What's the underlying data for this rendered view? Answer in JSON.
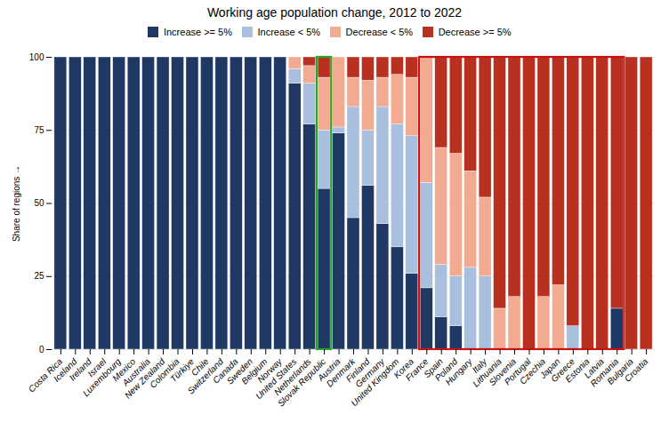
{
  "chart_data": {
    "type": "bar",
    "title": "Working age population change, 2012 to 2022",
    "ylabel": "Share of regions",
    "stacked": true,
    "grid": true,
    "legend": "top",
    "categories": [
      "Costa Rica",
      "Iceland",
      "Ireland",
      "Israel",
      "Luxembourg",
      "Mexico",
      "Australia",
      "New Zealand",
      "Colombia",
      "Türkiye",
      "Chile",
      "Switzerland",
      "Canada",
      "Sweden",
      "Belgium",
      "Norway",
      "United States",
      "Netherlands",
      "Slovak Republic",
      "Austria",
      "Denmark",
      "Finland",
      "Germany",
      "United Kingdom",
      "Korea",
      "France",
      "Spain",
      "Poland",
      "Hungary",
      "Italy",
      "Lithuania",
      "Slovenia",
      "Portugal",
      "Czechia",
      "Japan",
      "Greece",
      "Estonia",
      "Latvia",
      "Romania",
      "Bulgaria",
      "Croatia"
    ],
    "series": [
      {
        "name": "Increase >= 5%",
        "color": "#1f3864",
        "values": [
          100,
          100,
          100,
          100,
          100,
          100,
          100,
          100,
          100,
          100,
          100,
          100,
          100,
          100,
          100,
          100,
          91,
          77,
          55,
          74,
          45,
          56,
          43,
          35,
          26,
          21,
          11,
          8,
          0,
          0,
          0,
          0,
          0,
          0,
          0,
          0,
          0,
          0,
          14,
          0,
          0
        ]
      },
      {
        "name": "Increase < 5%",
        "color": "#a8bfdd",
        "values": [
          0,
          0,
          0,
          0,
          0,
          0,
          0,
          0,
          0,
          0,
          0,
          0,
          0,
          0,
          0,
          0,
          5,
          14,
          20,
          2,
          38,
          19,
          40,
          42,
          47,
          36,
          18,
          17,
          28,
          25,
          0,
          0,
          0,
          0,
          0,
          8,
          0,
          0,
          0,
          0,
          0
        ]
      },
      {
        "name": "Decrease < 5%",
        "color": "#f2aa91",
        "values": [
          0,
          0,
          0,
          0,
          0,
          0,
          0,
          0,
          0,
          0,
          0,
          0,
          0,
          0,
          0,
          0,
          4,
          6,
          18,
          24,
          10,
          17,
          10,
          17,
          20,
          43,
          40,
          42,
          33,
          27,
          14,
          18,
          0,
          18,
          22,
          0,
          0,
          0,
          0,
          0,
          0
        ]
      },
      {
        "name": "Decrease >= 5%",
        "color": "#b83020",
        "values": [
          0,
          0,
          0,
          0,
          0,
          0,
          0,
          0,
          0,
          0,
          0,
          0,
          0,
          0,
          0,
          0,
          0,
          3,
          7,
          0,
          7,
          8,
          7,
          6,
          7,
          0,
          31,
          33,
          39,
          48,
          86,
          82,
          100,
          82,
          78,
          92,
          100,
          100,
          86,
          100,
          100
        ]
      }
    ],
    "highlights": [
      {
        "from": "Slovak Republic",
        "to": "Slovak Republic",
        "color": "#22aa22"
      },
      {
        "from": "France",
        "to": "Romania",
        "color": "#cc1111"
      }
    ],
    "ylim": [
      0,
      100
    ],
    "yticks": [
      0,
      25,
      50,
      75,
      100
    ]
  }
}
